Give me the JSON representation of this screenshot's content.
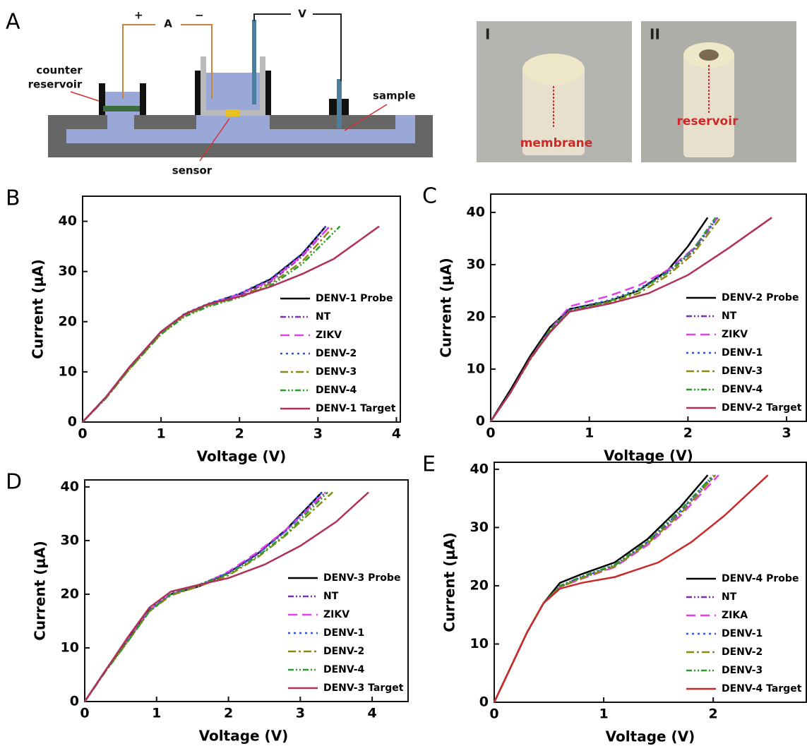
{
  "panel_a": {
    "letter": "A",
    "plus": "+",
    "ammeter": "A",
    "minus": "−",
    "voltmeter": "V",
    "counter_1": "counter",
    "counter_2": "reservoir",
    "sample": "sample",
    "sensor": "sensor"
  },
  "photos": [
    {
      "numeral": "I",
      "label": "membrane"
    },
    {
      "numeral": "II",
      "label": "reservoir"
    }
  ],
  "chart_data": [
    {
      "type": "line",
      "panel": "B",
      "x_label": "Voltage (V)",
      "y_label": "Current (μA)",
      "xlim": [
        0,
        4.05
      ],
      "ylim": [
        0,
        45
      ],
      "xticks": [
        0,
        1,
        2,
        3,
        4
      ],
      "yticks": [
        0,
        10,
        20,
        30,
        40
      ],
      "legend": "lower right",
      "series": [
        {
          "name": "DENV-1 Probe",
          "color": "#000000",
          "dash": "solid",
          "x": [
            0,
            0.3,
            0.6,
            1,
            1.3,
            1.6,
            2,
            2.4,
            2.8,
            3.1
          ],
          "values": [
            0,
            5,
            11,
            18,
            21.5,
            23.5,
            25.5,
            28.5,
            33.5,
            39
          ]
        },
        {
          "name": "NT",
          "color": "#7b2fb0",
          "dash": "dashdotdot",
          "x": [
            0,
            0.3,
            0.6,
            1,
            1.3,
            1.6,
            2,
            2.4,
            2.8,
            3.15
          ],
          "values": [
            0,
            5,
            10.8,
            17.8,
            21.3,
            23.3,
            25.3,
            28,
            33,
            39
          ]
        },
        {
          "name": "ZIKV",
          "color": "#e040e8",
          "dash": "dash",
          "x": [
            0,
            0.3,
            0.6,
            1,
            1.3,
            1.6,
            2,
            2.4,
            2.8,
            3.15
          ],
          "values": [
            0,
            5,
            11,
            18,
            21.5,
            23.5,
            25.5,
            28.2,
            33.2,
            39
          ]
        },
        {
          "name": "DENV-2",
          "color": "#3050e0",
          "dash": "dot",
          "x": [
            0,
            0.3,
            0.6,
            1,
            1.3,
            1.6,
            2,
            2.4,
            2.8,
            3.1
          ],
          "values": [
            0,
            5,
            11,
            18,
            21.6,
            23.6,
            25.6,
            28.6,
            33.6,
            39
          ]
        },
        {
          "name": "DENV-3",
          "color": "#8a8a10",
          "dash": "dashdot",
          "x": [
            0,
            0.3,
            0.6,
            1,
            1.3,
            1.6,
            2,
            2.4,
            2.8,
            3.2
          ],
          "values": [
            0,
            4.8,
            10.6,
            17.6,
            21.2,
            23.2,
            25,
            27.6,
            32,
            39
          ]
        },
        {
          "name": "DENV-4",
          "color": "#2a9a2a",
          "dash": "dashdotdot",
          "x": [
            0,
            0.3,
            0.6,
            1,
            1.3,
            1.6,
            2,
            2.4,
            2.8,
            3.28
          ],
          "values": [
            0,
            4.8,
            10.6,
            17.5,
            21,
            23,
            24.8,
            27.2,
            31.5,
            39
          ]
        },
        {
          "name": "DENV-1 Target",
          "color": "#b0305a",
          "dash": "solid",
          "x": [
            0,
            0.3,
            0.6,
            1,
            1.3,
            1.6,
            2,
            2.4,
            2.8,
            3.2,
            3.78
          ],
          "values": [
            0,
            5,
            11,
            18,
            21.5,
            23.5,
            25,
            27,
            29.5,
            32.5,
            39
          ]
        }
      ]
    },
    {
      "type": "line",
      "panel": "C",
      "x_label": "Voltage (V)",
      "y_label": "Current (μA)",
      "xlim": [
        0,
        3.2
      ],
      "ylim": [
        0,
        43.5
      ],
      "xticks": [
        0,
        1,
        2,
        3
      ],
      "yticks": [
        0,
        10,
        20,
        30,
        40
      ],
      "legend": "lower right",
      "series": [
        {
          "name": "DENV-2 Probe",
          "color": "#000000",
          "dash": "solid",
          "x": [
            0,
            0.2,
            0.4,
            0.6,
            0.8,
            1.2,
            1.5,
            1.8,
            2,
            2.2
          ],
          "values": [
            0,
            6,
            12.5,
            18,
            21.5,
            23,
            25,
            29,
            33.5,
            39
          ]
        },
        {
          "name": "NT",
          "color": "#7b2fb0",
          "dash": "dashdotdot",
          "x": [
            0,
            0.2,
            0.4,
            0.6,
            0.8,
            1.2,
            1.5,
            1.8,
            2.05,
            2.3
          ],
          "values": [
            0,
            5.5,
            12,
            17.5,
            21,
            23,
            25,
            28.5,
            32.5,
            39
          ]
        },
        {
          "name": "ZIKV",
          "color": "#e040e8",
          "dash": "dash",
          "x": [
            0,
            0.2,
            0.4,
            0.6,
            0.8,
            1.2,
            1.5,
            1.8,
            2.05,
            2.3
          ],
          "values": [
            0,
            5.5,
            12,
            17.5,
            22,
            24,
            26,
            29,
            33,
            39
          ]
        },
        {
          "name": "DENV-1",
          "color": "#3050e0",
          "dash": "dot",
          "x": [
            0,
            0.2,
            0.4,
            0.6,
            0.8,
            1.2,
            1.5,
            1.8,
            2.05,
            2.3
          ],
          "values": [
            0,
            5.5,
            12,
            17.5,
            21.5,
            23.2,
            25.3,
            28.8,
            32.8,
            39
          ]
        },
        {
          "name": "DENV-3",
          "color": "#8a8a10",
          "dash": "dashdot",
          "x": [
            0,
            0.2,
            0.4,
            0.6,
            0.8,
            1.2,
            1.5,
            1.8,
            2.05,
            2.33
          ],
          "values": [
            0,
            5.5,
            11.8,
            17.2,
            21,
            22.8,
            24.5,
            28,
            32,
            39
          ]
        },
        {
          "name": "DENV-4",
          "color": "#2a9a2a",
          "dash": "dashdotdot",
          "x": [
            0,
            0.2,
            0.4,
            0.6,
            0.8,
            1.2,
            1.5,
            1.8,
            2.05,
            2.28
          ],
          "values": [
            0,
            5.5,
            12,
            17.5,
            21.2,
            23,
            25,
            28.5,
            32.8,
            39
          ]
        },
        {
          "name": "DENV-2 Target",
          "color": "#b0305a",
          "dash": "solid",
          "x": [
            0,
            0.2,
            0.4,
            0.6,
            0.8,
            1.2,
            1.6,
            2,
            2.4,
            2.85
          ],
          "values": [
            0,
            5.5,
            12,
            17,
            21,
            22.5,
            24.5,
            28,
            33,
            39
          ]
        }
      ]
    },
    {
      "type": "line",
      "panel": "D",
      "x_label": "Voltage (V)",
      "y_label": "Current (μA)",
      "xlim": [
        0,
        4.5
      ],
      "ylim": [
        0,
        41.3
      ],
      "xticks": [
        0,
        1,
        2,
        3,
        4
      ],
      "yticks": [
        0,
        10,
        20,
        30,
        40
      ],
      "legend": "lower right",
      "series": [
        {
          "name": "DENV-3 Probe",
          "color": "#000000",
          "dash": "solid",
          "x": [
            0,
            0.3,
            0.6,
            0.9,
            1.2,
            1.6,
            2,
            2.4,
            2.8,
            3.3
          ],
          "values": [
            0,
            6,
            11.5,
            17,
            20,
            21.5,
            24,
            27.5,
            32,
            39
          ]
        },
        {
          "name": "NT",
          "color": "#7b2fb0",
          "dash": "dashdotdot",
          "x": [
            0,
            0.3,
            0.6,
            0.9,
            1.2,
            1.6,
            2,
            2.4,
            2.8,
            3.35
          ],
          "values": [
            0,
            6,
            11.5,
            17,
            20,
            21.8,
            24,
            27.5,
            31.8,
            39
          ]
        },
        {
          "name": "ZIKV",
          "color": "#e040e8",
          "dash": "dash",
          "x": [
            0,
            0.3,
            0.6,
            0.9,
            1.2,
            1.6,
            2,
            2.4,
            2.8,
            3.35
          ],
          "values": [
            0,
            6,
            11.5,
            17,
            20,
            21.6,
            24.2,
            27.8,
            32,
            39
          ]
        },
        {
          "name": "DENV-1",
          "color": "#3050e0",
          "dash": "dot",
          "x": [
            0,
            0.3,
            0.6,
            0.9,
            1.2,
            1.6,
            2,
            2.4,
            2.8,
            3.3
          ],
          "values": [
            0,
            6,
            11.6,
            17.2,
            20.2,
            21.8,
            24,
            27.4,
            31.8,
            39
          ]
        },
        {
          "name": "DENV-2",
          "color": "#8a8a10",
          "dash": "dashdot",
          "x": [
            0,
            0.3,
            0.6,
            0.9,
            1.2,
            1.6,
            2,
            2.4,
            2.8,
            3.45
          ],
          "values": [
            0,
            5.8,
            11.2,
            16.8,
            19.8,
            21.5,
            23.5,
            26.8,
            31,
            39
          ]
        },
        {
          "name": "DENV-4",
          "color": "#2a9a2a",
          "dash": "dashdotdot",
          "x": [
            0,
            0.3,
            0.6,
            0.9,
            1.2,
            1.6,
            2,
            2.4,
            2.8,
            3.38
          ],
          "values": [
            0,
            5.8,
            11.2,
            16.8,
            20,
            21.8,
            23.8,
            27,
            31.2,
            39
          ]
        },
        {
          "name": "DENV-3 Target",
          "color": "#b0305a",
          "dash": "solid",
          "x": [
            0,
            0.3,
            0.6,
            0.9,
            1.2,
            1.6,
            2,
            2.5,
            3,
            3.5,
            3.95
          ],
          "values": [
            0,
            6,
            12,
            17.5,
            20.5,
            21.8,
            23,
            25.5,
            29,
            33.5,
            39
          ]
        }
      ]
    },
    {
      "type": "line",
      "panel": "E",
      "x_label": "Voltage (V)",
      "y_label": "Current (μA)",
      "xlim": [
        0,
        2.85
      ],
      "ylim": [
        0,
        41.2
      ],
      "xticks": [
        0,
        1,
        2
      ],
      "yticks": [
        0,
        10,
        20,
        30,
        40
      ],
      "legend": "lower right",
      "series": [
        {
          "name": "DENV-4 Probe",
          "color": "#000000",
          "dash": "solid",
          "x": [
            0,
            0.15,
            0.3,
            0.45,
            0.6,
            0.8,
            1.1,
            1.4,
            1.7,
            1.95
          ],
          "values": [
            0,
            6,
            12,
            17,
            20.5,
            22,
            24,
            28,
            33.5,
            39
          ]
        },
        {
          "name": "NT",
          "color": "#7b2fb0",
          "dash": "dashdotdot",
          "x": [
            0,
            0.15,
            0.3,
            0.45,
            0.6,
            0.8,
            1.1,
            1.4,
            1.7,
            2.02
          ],
          "values": [
            0,
            6,
            12,
            17,
            19.8,
            21.5,
            23.5,
            27.3,
            32.5,
            39
          ]
        },
        {
          "name": "ZIKA",
          "color": "#e040e8",
          "dash": "dash",
          "x": [
            0,
            0.15,
            0.3,
            0.45,
            0.6,
            0.8,
            1.1,
            1.4,
            1.7,
            2.05
          ],
          "values": [
            0,
            6,
            12,
            17,
            19.8,
            21.2,
            23.2,
            27,
            32,
            39
          ]
        },
        {
          "name": "DENV-1",
          "color": "#3050e0",
          "dash": "dot",
          "x": [
            0,
            0.15,
            0.3,
            0.45,
            0.6,
            0.8,
            1.1,
            1.4,
            1.7,
            2.0
          ],
          "values": [
            0,
            6,
            12,
            17,
            20,
            21.5,
            23.5,
            27.5,
            32.8,
            39
          ]
        },
        {
          "name": "DENV-2",
          "color": "#8a8a10",
          "dash": "dashdot",
          "x": [
            0,
            0.15,
            0.3,
            0.45,
            0.6,
            0.8,
            1.1,
            1.4,
            1.7,
            2.02
          ],
          "values": [
            0,
            6,
            12,
            17,
            19.8,
            21.3,
            23.3,
            27.2,
            32.3,
            39
          ]
        },
        {
          "name": "DENV-3",
          "color": "#2a9a2a",
          "dash": "dashdotdot",
          "x": [
            0,
            0.15,
            0.3,
            0.45,
            0.6,
            0.8,
            1.1,
            1.4,
            1.7,
            2.0
          ],
          "values": [
            0,
            6,
            12,
            17,
            20,
            21.6,
            23.6,
            27.6,
            33,
            39
          ]
        },
        {
          "name": "DENV-4 Target",
          "color": "#cc2a2a",
          "dash": "solid",
          "x": [
            0,
            0.15,
            0.3,
            0.45,
            0.6,
            0.8,
            1.1,
            1.5,
            1.8,
            2.1,
            2.5
          ],
          "values": [
            0,
            6,
            12,
            17,
            19.5,
            20.5,
            21.5,
            24,
            27.5,
            32,
            39
          ]
        }
      ]
    }
  ]
}
